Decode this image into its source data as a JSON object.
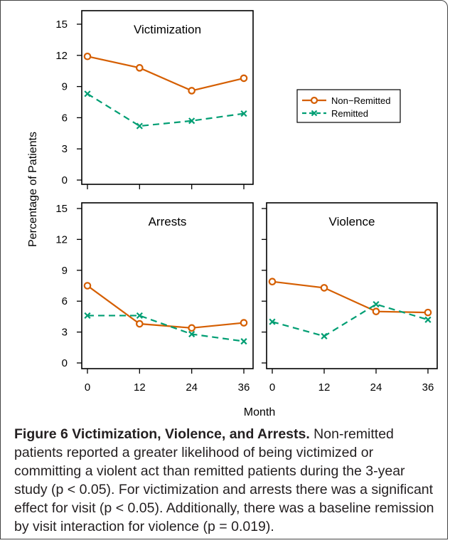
{
  "chart_data": {
    "type": "line",
    "xlabel": "Month",
    "ylabel": "Percentage of Patients",
    "ylim": [
      0,
      15
    ],
    "yticks": [
      0,
      3,
      6,
      9,
      12,
      15
    ],
    "xticks": [
      0,
      12,
      24,
      36
    ],
    "legend": {
      "placement": "inside-top-right-panel",
      "entries": [
        "Non−Remitted",
        "Remitted"
      ]
    },
    "colors": {
      "non_remitted": "#d55e00",
      "remitted": "#009e73"
    },
    "panels": [
      {
        "title": "Victimization",
        "x": [
          0,
          12,
          24,
          36
        ],
        "series": [
          {
            "name": "Non−Remitted",
            "values": [
              11.9,
              10.8,
              8.6,
              9.8
            ]
          },
          {
            "name": "Remitted",
            "values": [
              8.3,
              5.2,
              5.7,
              6.4
            ]
          }
        ]
      },
      {
        "title": "Arrests",
        "x": [
          0,
          12,
          24,
          36
        ],
        "series": [
          {
            "name": "Non−Remitted",
            "values": [
              7.5,
              3.8,
              3.4,
              3.9
            ]
          },
          {
            "name": "Remitted",
            "values": [
              4.6,
              4.6,
              2.8,
              2.1
            ]
          }
        ]
      },
      {
        "title": "Violence",
        "x": [
          0,
          12,
          24,
          36
        ],
        "series": [
          {
            "name": "Non−Remitted",
            "values": [
              7.9,
              7.3,
              5.0,
              4.9
            ]
          },
          {
            "name": "Remitted",
            "values": [
              4.0,
              2.6,
              5.7,
              4.2
            ]
          }
        ]
      }
    ]
  },
  "caption": {
    "title": "Figure 6 Victimization, Violence, and Arrests.",
    "text": " Non-remitted patients reported a greater likelihood of being victimized or committing a violent act than remitted patients during the 3-year study (p < 0.05). For victimization and arrests there was a significant effect for visit (p < 0.05). Additionally, there was a baseline remission by visit interaction for violence (p = 0.019)."
  }
}
